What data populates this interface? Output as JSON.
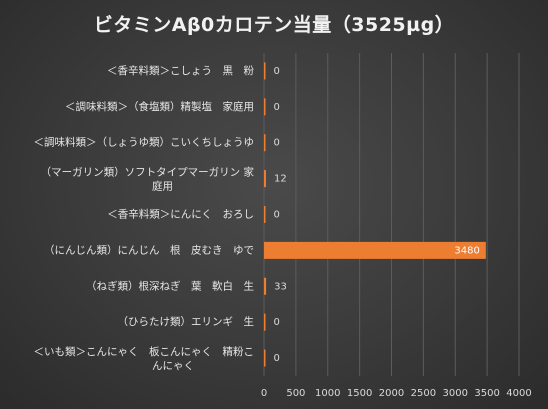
{
  "chart_data": {
    "type": "bar",
    "orientation": "horizontal",
    "title": "ビタミンAβ0カロテン当量（3525µg）",
    "categories": [
      "＜香辛料類＞こしょう　黒　粉",
      "＜調味料類＞（食塩類）精製塩　家庭用",
      "＜調味料類＞（しょうゆ類）こいくちしょうゆ",
      "（マーガリン類）ソフトタイプマーガリン 家庭用",
      "＜香辛料類＞にんにく　おろし",
      "（にんじん類）にんじん　根　皮むき　ゆで",
      "（ねぎ類）根深ねぎ　葉　軟白　生",
      "（ひらたけ類）エリンギ　生",
      "＜いも類＞こんにゃく　板こんにゃく　精粉こんにゃく"
    ],
    "values": [
      0,
      0,
      0,
      12,
      0,
      3480,
      33,
      0,
      0
    ],
    "value_labels": [
      "0",
      "0",
      "0",
      "12",
      "0",
      "3480",
      "33",
      "0",
      "0"
    ],
    "x_ticks": [
      "0",
      "500",
      "1000",
      "1500",
      "2000",
      "2500",
      "3000",
      "3500",
      "4000"
    ],
    "xlim": [
      0,
      4000
    ],
    "bar_color": "#ed7d31",
    "grid": true,
    "legend": "none"
  }
}
